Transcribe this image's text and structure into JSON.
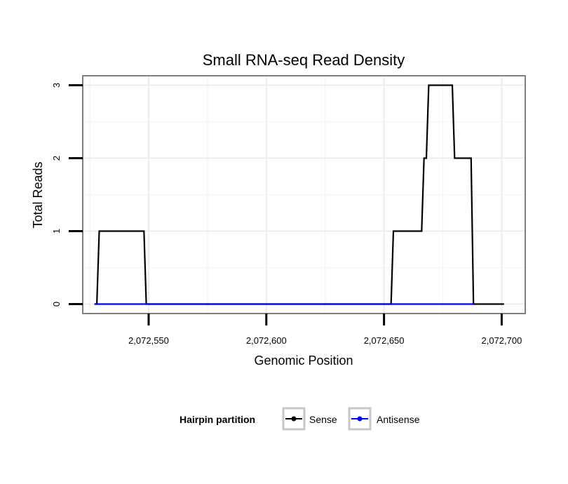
{
  "chart_data": {
    "type": "line",
    "title": "Small RNA-seq Read Density",
    "xlabel": "Genomic Position",
    "ylabel": "Total Reads",
    "xlim": [
      2072522,
      2072710
    ],
    "ylim": [
      -0.13,
      3.13
    ],
    "x_ticks": [
      2072550,
      2072600,
      2072650,
      2072700
    ],
    "x_tick_labels": [
      "2,072,550",
      "2,072,600",
      "2,072,650",
      "2,072,700"
    ],
    "y_ticks": [
      0,
      1,
      2,
      3
    ],
    "y_tick_labels": [
      "0",
      "1",
      "2",
      "3"
    ],
    "grid": true,
    "legend": {
      "title": "Hairpin partition",
      "position": "bottom",
      "entries": [
        {
          "name": "Sense",
          "color": "#000000"
        },
        {
          "name": "Antisense",
          "color": "#0000ff"
        }
      ]
    },
    "series": [
      {
        "name": "Sense",
        "color": "#000000",
        "points": [
          [
            2072527,
            0
          ],
          [
            2072528,
            0
          ],
          [
            2072529,
            1
          ],
          [
            2072548,
            1
          ],
          [
            2072549,
            0
          ],
          [
            2072653,
            0
          ],
          [
            2072654,
            1
          ],
          [
            2072666,
            1
          ],
          [
            2072667,
            2
          ],
          [
            2072668,
            2
          ],
          [
            2072669,
            3
          ],
          [
            2072679,
            3
          ],
          [
            2072680,
            2
          ],
          [
            2072687,
            2
          ],
          [
            2072688,
            0
          ],
          [
            2072701,
            0
          ]
        ]
      },
      {
        "name": "Antisense",
        "color": "#0000ff",
        "points": [
          [
            2072527,
            0
          ],
          [
            2072549,
            0
          ],
          [
            2072653,
            0
          ],
          [
            2072688,
            0
          ]
        ]
      }
    ]
  }
}
